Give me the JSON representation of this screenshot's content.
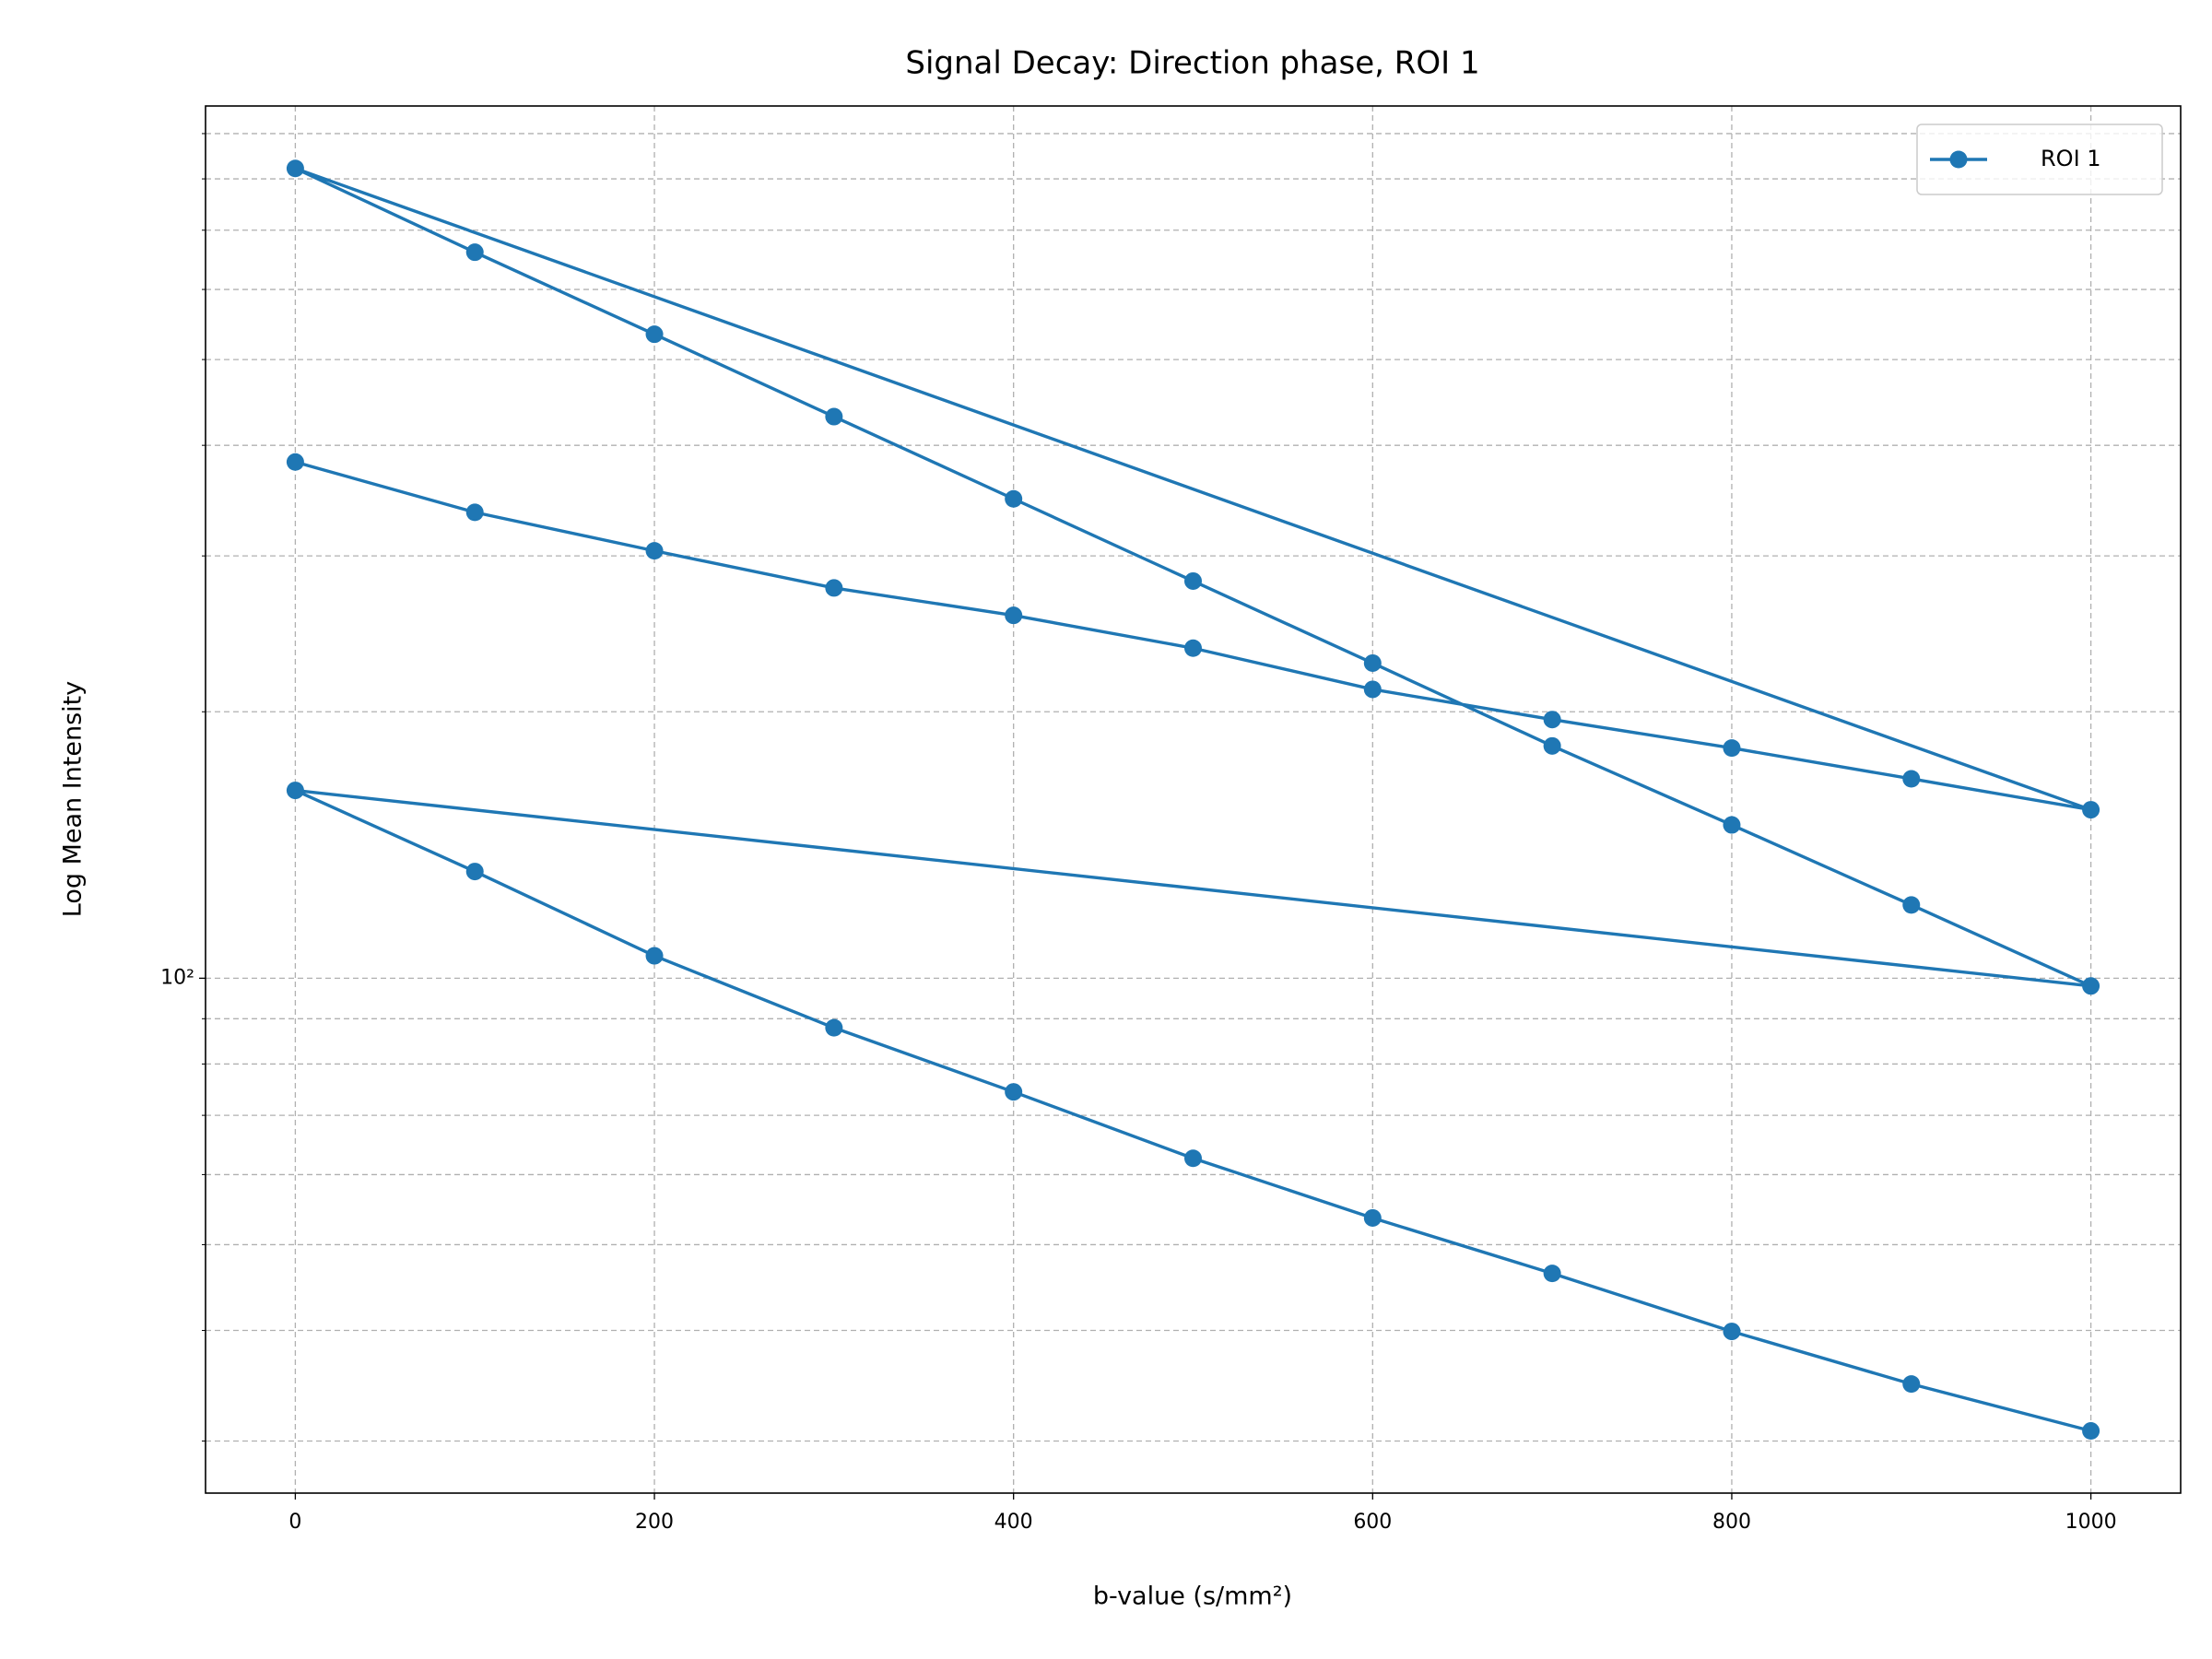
{
  "chart_data": {
    "type": "line",
    "title": "Signal Decay: Direction phase, ROI 1",
    "xlabel": "b-value (s/mm²)",
    "ylabel": "Log Mean Intensity",
    "x": [
      0,
      100,
      200,
      300,
      400,
      500,
      600,
      700,
      800,
      900,
      1000,
      0,
      100,
      200,
      300,
      400,
      500,
      600,
      700,
      800,
      900,
      1000,
      0,
      100,
      200,
      300,
      400,
      500,
      600,
      700,
      800,
      900,
      1000
    ],
    "series": [
      {
        "name": "ROI 1",
        "color": "#1f77b4",
        "values": [
          383,
          336,
          304,
          276,
          257,
          236,
          212,
          196,
          182,
          168,
          155,
          822,
          661,
          534,
          431,
          348,
          281,
          227,
          183,
          149,
          121,
          98,
          163,
          132,
          106,
          87.9,
          74.4,
          62.6,
          53.6,
          46.4,
          39.9,
          34.8,
          30.8
        ]
      }
    ],
    "xlim": [
      -50,
      1050
    ],
    "xticks": [
      0,
      200,
      400,
      600,
      800,
      1000
    ],
    "ylim": [
      26.2,
      967
    ],
    "yscale": "log",
    "yticks": [
      {
        "value": 100,
        "label": "10²"
      }
    ],
    "yminorticks": [
      30,
      40,
      50,
      60,
      70,
      80,
      90,
      200,
      300,
      400,
      500,
      600,
      700,
      800,
      900
    ],
    "grid": true,
    "legend": "upper right"
  }
}
